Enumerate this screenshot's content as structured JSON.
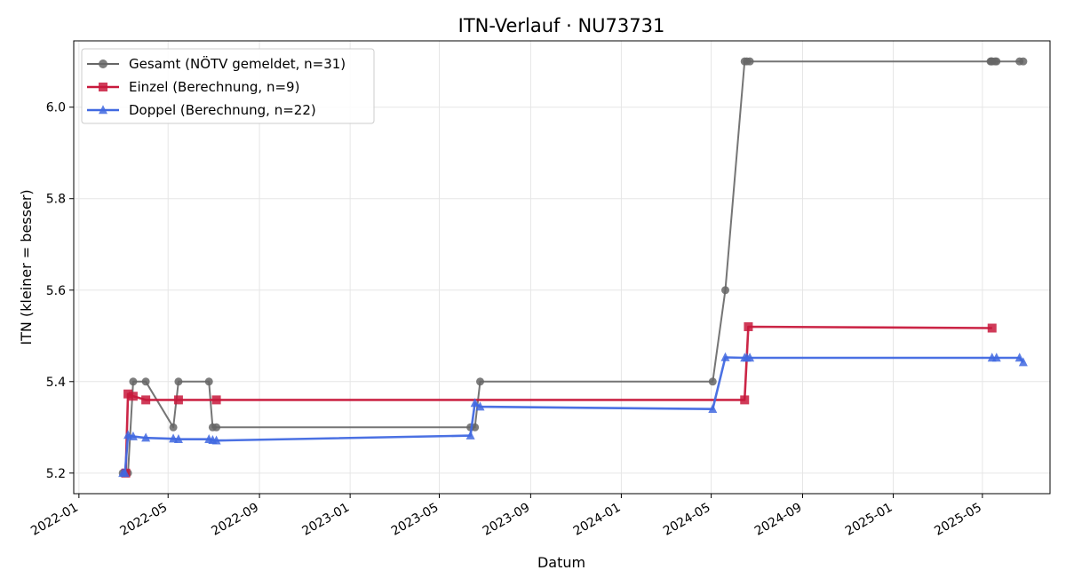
{
  "chart_data": {
    "type": "line",
    "title": "ITN-Verlauf · NU73731",
    "xlabel": "Datum",
    "ylabel": "ITN  (kleiner = besser)",
    "x_type": "date",
    "xlim": [
      "2021-12-25",
      "2025-07-31"
    ],
    "ylim": [
      5.155,
      6.145
    ],
    "x_ticks": [
      "2022-01-01",
      "2022-05-01",
      "2022-09-01",
      "2023-01-01",
      "2023-05-01",
      "2023-09-01",
      "2024-01-01",
      "2024-05-01",
      "2024-09-01",
      "2025-01-01",
      "2025-05-01"
    ],
    "x_tick_labels": [
      "2022-01",
      "2022-05",
      "2022-09",
      "2023-01",
      "2023-05",
      "2023-09",
      "2024-01",
      "2024-05",
      "2024-09",
      "2025-01",
      "2025-05"
    ],
    "y_ticks": [
      5.2,
      5.4,
      5.6,
      5.8,
      6.0
    ],
    "y_tick_labels": [
      "5.2",
      "5.4",
      "5.6",
      "5.8",
      "6.0"
    ],
    "grid": true,
    "legend_position": "upper-left",
    "series": [
      {
        "name": "Gesamt (NÖTV gemeldet, n=31)",
        "color": "#666666",
        "marker": "circle",
        "points": [
          [
            "2022-03-01",
            5.2
          ],
          [
            "2022-03-04",
            5.2
          ],
          [
            "2022-03-08",
            5.2
          ],
          [
            "2022-03-15",
            5.4
          ],
          [
            "2022-04-01",
            5.4
          ],
          [
            "2022-05-08",
            5.3
          ],
          [
            "2022-05-15",
            5.4
          ],
          [
            "2022-06-25",
            5.4
          ],
          [
            "2022-06-30",
            5.3
          ],
          [
            "2022-07-05",
            5.3
          ],
          [
            "2023-06-12",
            5.3
          ],
          [
            "2023-06-18",
            5.3
          ],
          [
            "2023-06-25",
            5.4
          ],
          [
            "2024-05-03",
            5.4
          ],
          [
            "2024-05-20",
            5.6
          ],
          [
            "2024-06-15",
            6.1
          ],
          [
            "2024-06-18",
            6.1
          ],
          [
            "2024-06-22",
            6.1
          ],
          [
            "2025-05-12",
            6.1
          ],
          [
            "2025-05-13",
            6.1
          ],
          [
            "2025-05-14",
            6.1
          ],
          [
            "2025-05-18",
            6.1
          ],
          [
            "2025-05-20",
            6.1
          ],
          [
            "2025-06-20",
            6.1
          ],
          [
            "2025-06-25",
            6.1
          ]
        ]
      },
      {
        "name": "Einzel (Berechnung, n=9)",
        "color": "#c8193c",
        "marker": "square",
        "points": [
          [
            "2022-03-05",
            5.2
          ],
          [
            "2022-03-08",
            5.373
          ],
          [
            "2022-03-15",
            5.368
          ],
          [
            "2022-04-01",
            5.36
          ],
          [
            "2022-05-15",
            5.36
          ],
          [
            "2022-07-05",
            5.36
          ],
          [
            "2024-06-15",
            5.36
          ],
          [
            "2024-06-20",
            5.52
          ],
          [
            "2025-05-14",
            5.517
          ]
        ]
      },
      {
        "name": "Doppel (Berechnung, n=22)",
        "color": "#4169e1",
        "marker": "triangle",
        "points": [
          [
            "2022-03-01",
            5.2
          ],
          [
            "2022-03-04",
            5.2
          ],
          [
            "2022-03-08",
            5.283
          ],
          [
            "2022-03-15",
            5.28
          ],
          [
            "2022-04-01",
            5.277
          ],
          [
            "2022-05-08",
            5.275
          ],
          [
            "2022-05-15",
            5.274
          ],
          [
            "2022-06-25",
            5.274
          ],
          [
            "2022-06-30",
            5.272
          ],
          [
            "2022-07-05",
            5.271
          ],
          [
            "2023-06-12",
            5.282
          ],
          [
            "2023-06-18",
            5.353
          ],
          [
            "2023-06-25",
            5.345
          ],
          [
            "2024-05-03",
            5.34
          ],
          [
            "2024-05-20",
            5.453
          ],
          [
            "2024-06-15",
            5.452
          ],
          [
            "2024-06-18",
            5.452
          ],
          [
            "2024-06-22",
            5.452
          ],
          [
            "2025-05-14",
            5.452
          ],
          [
            "2025-05-20",
            5.452
          ],
          [
            "2025-06-20",
            5.452
          ],
          [
            "2025-06-25",
            5.442
          ]
        ]
      }
    ]
  }
}
